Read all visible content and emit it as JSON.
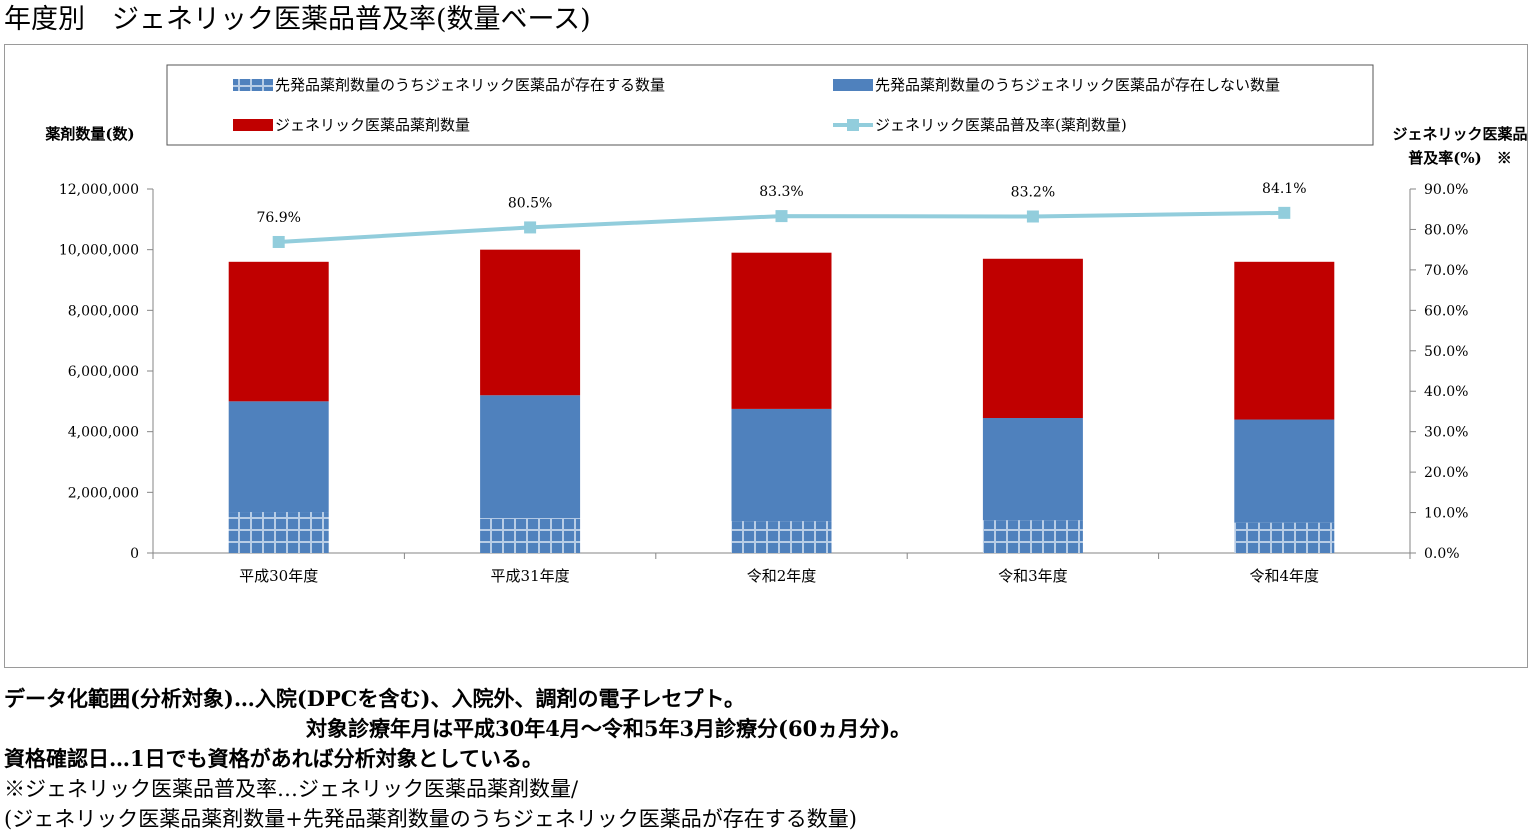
{
  "title": "年度別　ジェネリック医薬品普及率(数量ベース)",
  "chart_data": {
    "type": "bar",
    "stacked": true,
    "categories": [
      "平成30年度",
      "平成31年度",
      "令和2年度",
      "令和3年度",
      "令和4年度"
    ],
    "series": [
      {
        "name": "先発品薬剤数量のうちジェネリック医薬品が存在する数量",
        "type": "bar",
        "color": "#4f81bd",
        "pattern": "grid",
        "values": [
          1350000,
          1150000,
          1050000,
          1080000,
          1000000
        ]
      },
      {
        "name": "先発品薬剤数量のうちジェネリック医薬品が存在しない数量",
        "type": "bar",
        "color": "#4f81bd",
        "values": [
          3650000,
          4050000,
          3700000,
          3370000,
          3400000
        ]
      },
      {
        "name": "ジェネリック医薬品薬剤数量",
        "type": "bar",
        "color": "#c00000",
        "values": [
          4600000,
          4800000,
          5150000,
          5250000,
          5200000
        ]
      },
      {
        "name": "ジェネリック医薬品普及率(薬剤数量)",
        "type": "line",
        "axis": "right",
        "color": "#92cddc",
        "values": [
          76.9,
          80.5,
          83.3,
          83.2,
          84.1
        ],
        "labels": [
          "76.9%",
          "80.5%",
          "83.3%",
          "83.2%",
          "84.1%"
        ]
      }
    ],
    "ylabel": "薬剤数量(数)",
    "ylabel_right": [
      "ジェネリック医薬品",
      "普及率(%)　※"
    ],
    "ylim": [
      0,
      12000000
    ],
    "yticks": [
      0,
      2000000,
      4000000,
      6000000,
      8000000,
      10000000,
      12000000
    ],
    "ytick_labels": [
      "0",
      "2,000,000",
      "4,000,000",
      "6,000,000",
      "8,000,000",
      "10,000,000",
      "12,000,000"
    ],
    "ylim_right": [
      0,
      90
    ],
    "yticks_right": [
      0,
      10,
      20,
      30,
      40,
      50,
      60,
      70,
      80,
      90
    ],
    "ytick_labels_right": [
      "0.0%",
      "10.0%",
      "20.0%",
      "30.0%",
      "40.0%",
      "50.0%",
      "60.0%",
      "70.0%",
      "80.0%",
      "90.0%"
    ],
    "grid": false,
    "legend": "top"
  },
  "notes": {
    "line1": "データ化範囲(分析対象)…入院(DPCを含む)、入院外、調剤の電子レセプト。",
    "line2": "対象診療年月は平成30年4月～令和5年3月診療分(60ヵ月分)。",
    "line3": "資格確認日…1日でも資格があれば分析対象としている。",
    "line4": "※ジェネリック医薬品普及率…ジェネリック医薬品薬剤数量/",
    "line5": "(ジェネリック医薬品薬剤数量+先発品薬剤数量のうちジェネリック医薬品が存在する数量)"
  }
}
